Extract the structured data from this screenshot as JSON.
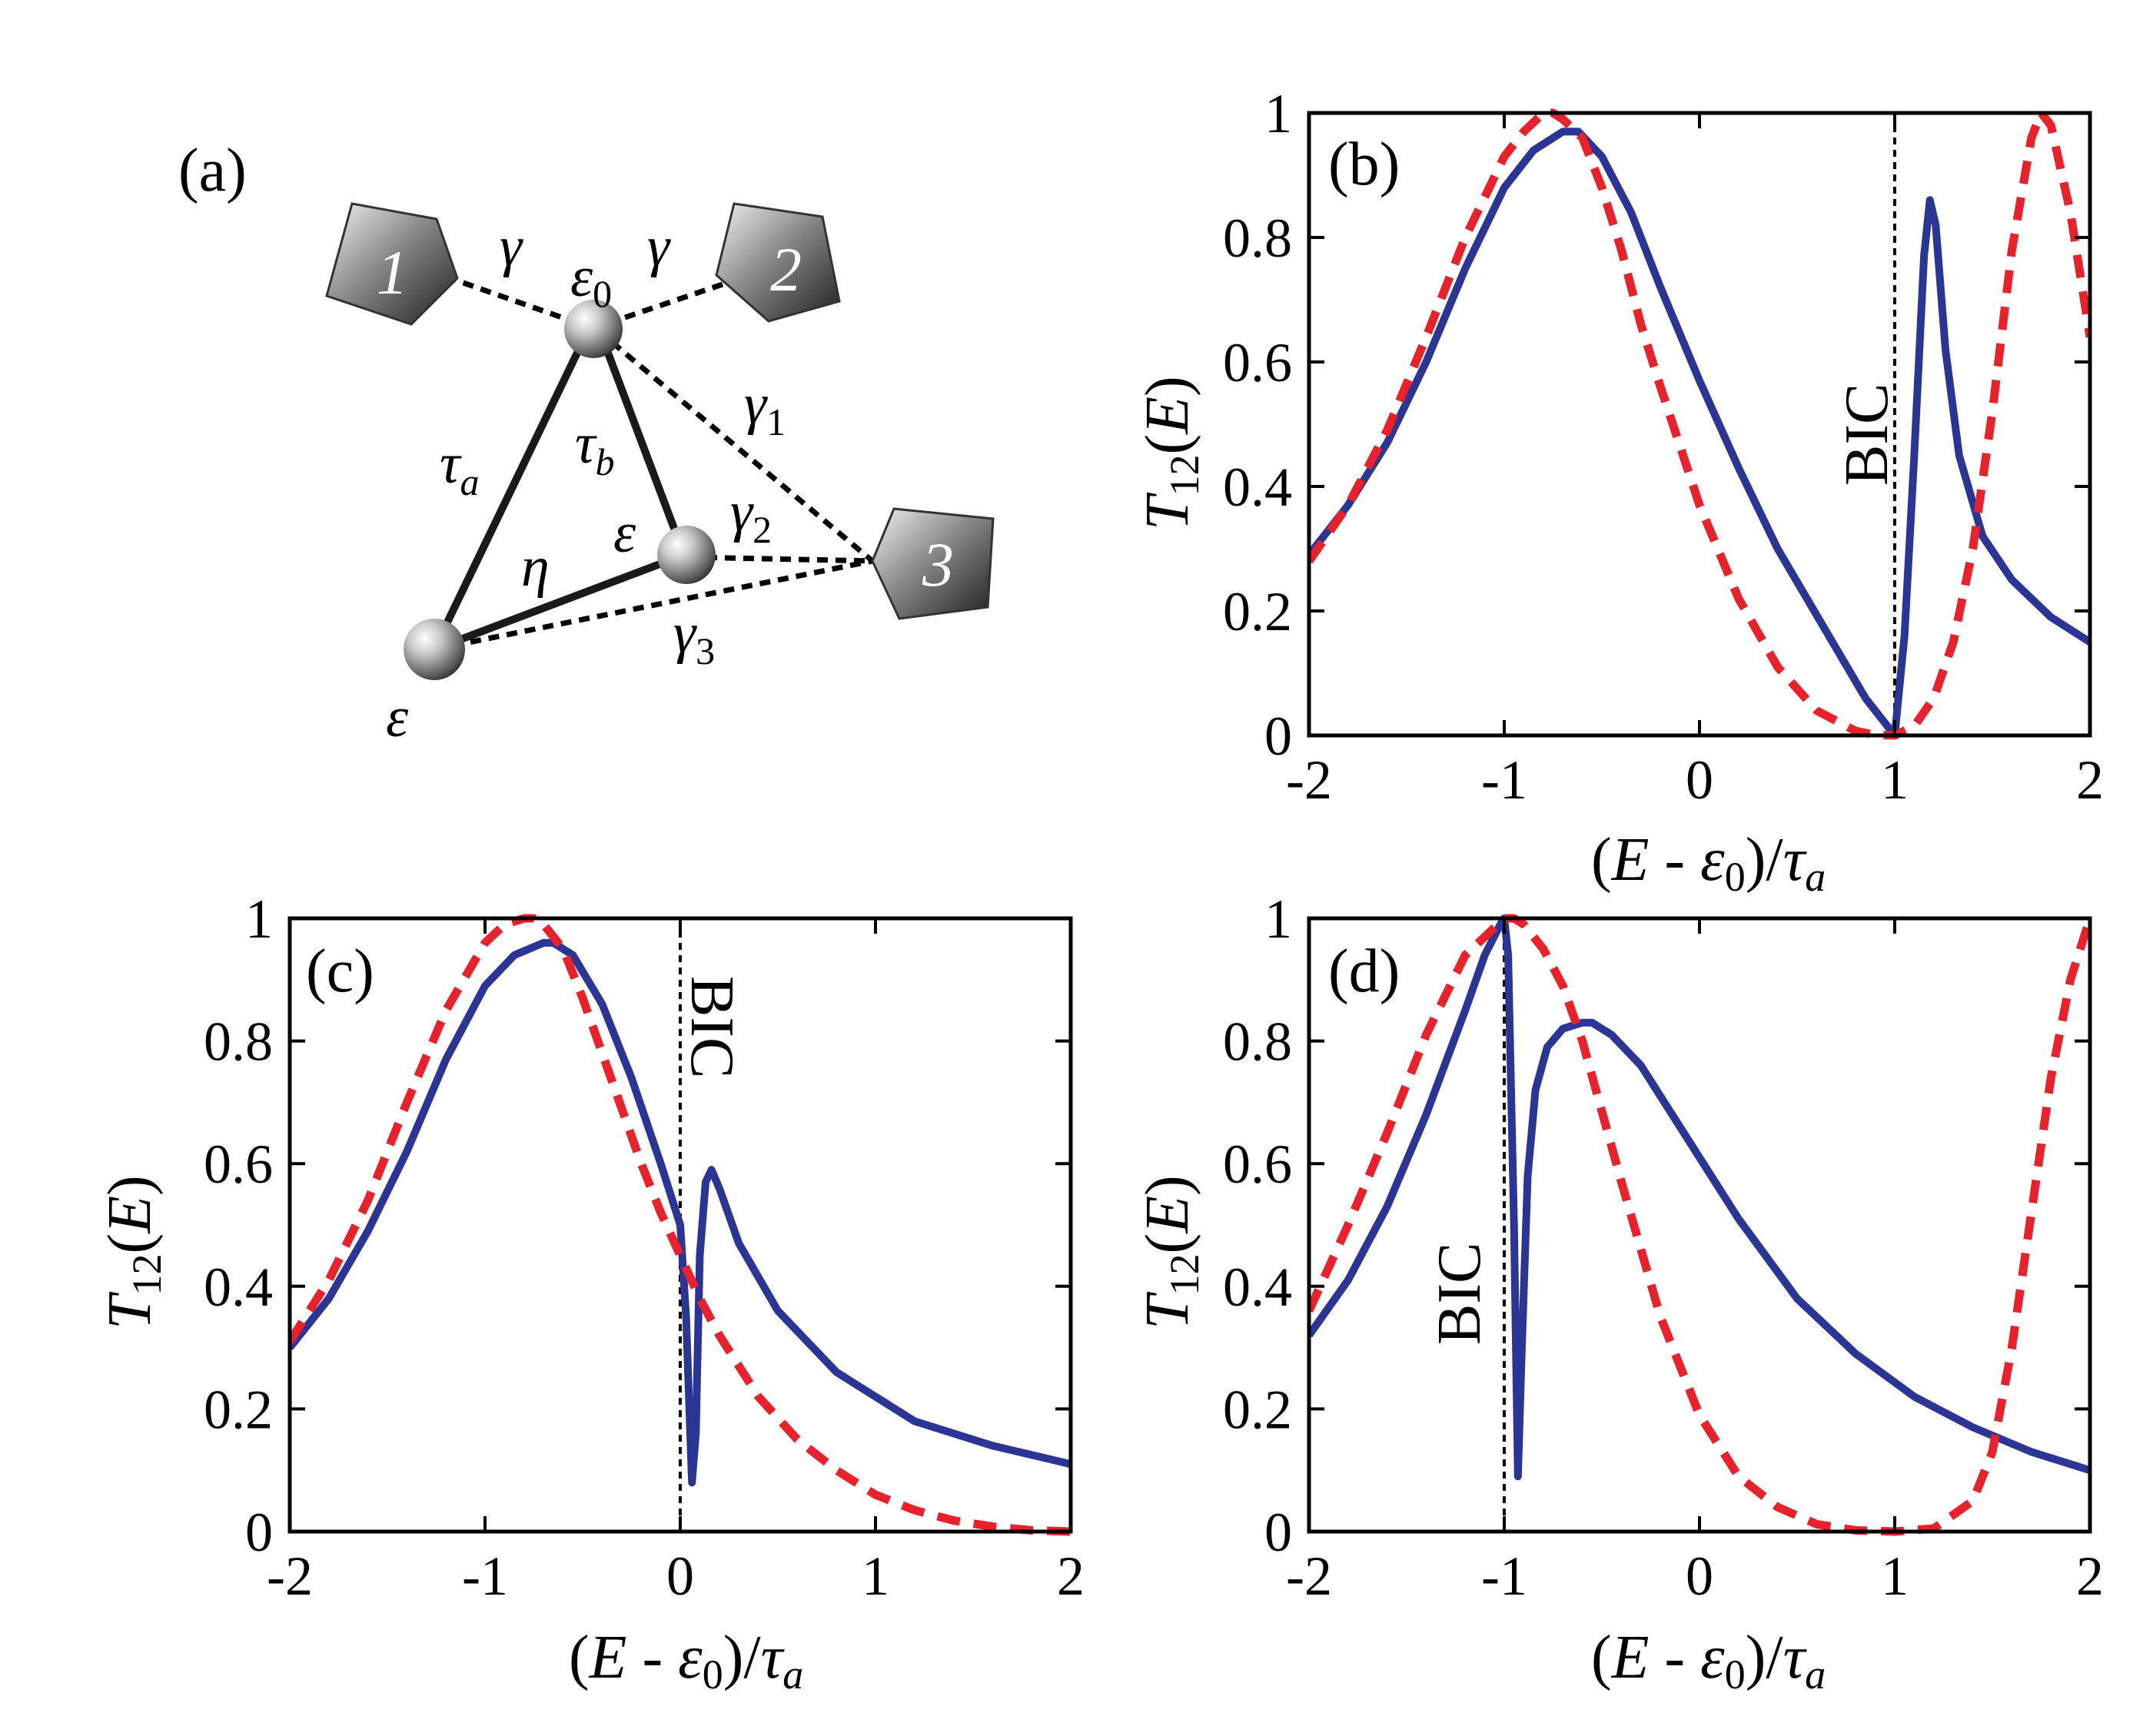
{
  "figure": {
    "panel_a": {
      "label": "(a)",
      "leads": [
        "1",
        "2",
        "3"
      ],
      "sites": {
        "top": "ε",
        "top_sub": "0",
        "right": "ε",
        "bottom": "ε"
      },
      "couplings": {
        "gamma_left": "γ",
        "gamma_right": "γ",
        "gamma1": "γ",
        "gamma1_sub": "1",
        "gamma2": "γ",
        "gamma2_sub": "2",
        "gamma3": "γ",
        "gamma3_sub": "3",
        "tau_a": "τ",
        "tau_a_sub": "a",
        "tau_b": "τ",
        "tau_b_sub": "b",
        "eta": "η"
      }
    },
    "xlabel": {
      "open": "(",
      "E": "E",
      "minus": " - ",
      "eps": "ε",
      "eps_sub": "0",
      "close": ")/",
      "tau": "τ",
      "tau_sub": "a"
    },
    "ylabel": {
      "T": "T",
      "T_sub": "12",
      "open": "(",
      "E": "E",
      "close": ")"
    },
    "colors": {
      "solid": "#2b3596",
      "dashed": "#e8212a",
      "axis": "#000000"
    }
  },
  "chart_data": [
    {
      "panel": "(b)",
      "type": "line",
      "xlim": [
        -2,
        2
      ],
      "ylim": [
        0,
        1
      ],
      "xticks": [
        "-2",
        "-1",
        "0",
        "1",
        "2"
      ],
      "yticks": [
        "0",
        "0.2",
        "0.4",
        "0.6",
        "0.8",
        "1"
      ],
      "bic_label": "BIC",
      "bic_x": 1,
      "series": [
        {
          "name": "solid",
          "x": [
            -2,
            -1.8,
            -1.6,
            -1.4,
            -1.2,
            -1.0,
            -0.85,
            -0.7,
            -0.62,
            -0.5,
            -0.35,
            -0.2,
            0.0,
            0.2,
            0.4,
            0.55,
            0.7,
            0.85,
            1.0,
            1.05,
            1.1,
            1.15,
            1.18,
            1.21,
            1.26,
            1.33,
            1.45,
            1.6,
            1.8,
            2.0
          ],
          "values": [
            0.29,
            0.37,
            0.47,
            0.6,
            0.75,
            0.88,
            0.94,
            0.97,
            0.97,
            0.93,
            0.84,
            0.72,
            0.57,
            0.43,
            0.3,
            0.22,
            0.14,
            0.06,
            0.0,
            0.16,
            0.45,
            0.77,
            0.86,
            0.82,
            0.62,
            0.45,
            0.32,
            0.25,
            0.19,
            0.15
          ]
        },
        {
          "name": "dashed",
          "x": [
            -2,
            -1.8,
            -1.6,
            -1.4,
            -1.2,
            -1.0,
            -0.9,
            -0.8,
            -0.75,
            -0.7,
            -0.6,
            -0.5,
            -0.4,
            -0.3,
            -0.2,
            0.0,
            0.2,
            0.4,
            0.6,
            0.8,
            0.9,
            1.0,
            1.1,
            1.2,
            1.3,
            1.4,
            1.5,
            1.6,
            1.7,
            1.75,
            1.8,
            1.9,
            2.0
          ],
          "values": [
            0.28,
            0.37,
            0.49,
            0.64,
            0.8,
            0.93,
            0.97,
            1.0,
            1.0,
            0.99,
            0.96,
            0.88,
            0.78,
            0.66,
            0.56,
            0.37,
            0.22,
            0.11,
            0.04,
            0.007,
            0.001,
            0.0,
            0.015,
            0.06,
            0.15,
            0.3,
            0.52,
            0.78,
            0.96,
            1.0,
            0.98,
            0.84,
            0.64
          ]
        }
      ]
    },
    {
      "panel": "(c)",
      "type": "line",
      "xlim": [
        -2,
        2
      ],
      "ylim": [
        0,
        1
      ],
      "xticks": [
        "-2",
        "-1",
        "0",
        "1",
        "2"
      ],
      "yticks": [
        "0",
        "0.2",
        "0.4",
        "0.6",
        "0.8",
        "1"
      ],
      "bic_label": "BIC",
      "bic_x": 0,
      "series": [
        {
          "name": "solid",
          "x": [
            -2,
            -1.8,
            -1.6,
            -1.4,
            -1.2,
            -1.0,
            -0.85,
            -0.7,
            -0.65,
            -0.55,
            -0.4,
            -0.25,
            -0.1,
            0.0,
            0.03,
            0.06,
            0.08,
            0.1,
            0.13,
            0.16,
            0.2,
            0.3,
            0.5,
            0.8,
            1.2,
            1.6,
            2.0
          ],
          "values": [
            0.3,
            0.38,
            0.49,
            0.62,
            0.77,
            0.89,
            0.94,
            0.96,
            0.96,
            0.94,
            0.86,
            0.74,
            0.6,
            0.5,
            0.35,
            0.08,
            0.16,
            0.45,
            0.57,
            0.59,
            0.56,
            0.47,
            0.36,
            0.26,
            0.18,
            0.14,
            0.11
          ]
        },
        {
          "name": "dashed",
          "x": [
            -2,
            -1.8,
            -1.6,
            -1.4,
            -1.2,
            -1.0,
            -0.9,
            -0.8,
            -0.75,
            -0.7,
            -0.6,
            -0.5,
            -0.4,
            -0.3,
            -0.2,
            -0.1,
            0.0,
            0.1,
            0.2,
            0.4,
            0.6,
            0.8,
            1.0,
            1.2,
            1.4,
            1.6,
            1.8,
            2.0
          ],
          "values": [
            0.31,
            0.41,
            0.54,
            0.7,
            0.85,
            0.96,
            0.99,
            1.0,
            1.0,
            0.99,
            0.95,
            0.87,
            0.78,
            0.69,
            0.6,
            0.52,
            0.45,
            0.38,
            0.32,
            0.22,
            0.15,
            0.1,
            0.06,
            0.035,
            0.018,
            0.008,
            0.002,
            0.0
          ]
        }
      ]
    },
    {
      "panel": "(d)",
      "type": "line",
      "xlim": [
        -2,
        2
      ],
      "ylim": [
        0,
        1
      ],
      "xticks": [
        "-2",
        "-1",
        "0",
        "1",
        "2"
      ],
      "yticks": [
        "0",
        "0.2",
        "0.4",
        "0.6",
        "0.8",
        "1"
      ],
      "bic_label": "BIC",
      "bic_x": -1,
      "series": [
        {
          "name": "solid",
          "x": [
            -2,
            -1.8,
            -1.6,
            -1.4,
            -1.2,
            -1.1,
            -1.02,
            -1.0,
            -0.98,
            -0.95,
            -0.93,
            -0.91,
            -0.88,
            -0.84,
            -0.78,
            -0.7,
            -0.6,
            -0.55,
            -0.45,
            -0.3,
            -0.1,
            0.2,
            0.5,
            0.8,
            1.1,
            1.4,
            1.7,
            2.0
          ],
          "values": [
            0.32,
            0.41,
            0.53,
            0.68,
            0.85,
            0.94,
            0.99,
            1.0,
            0.94,
            0.5,
            0.09,
            0.3,
            0.58,
            0.72,
            0.79,
            0.82,
            0.83,
            0.83,
            0.81,
            0.76,
            0.66,
            0.51,
            0.38,
            0.29,
            0.22,
            0.17,
            0.13,
            0.1
          ]
        },
        {
          "name": "dashed",
          "x": [
            -2,
            -1.8,
            -1.6,
            -1.4,
            -1.2,
            -1.0,
            -0.95,
            -0.9,
            -0.8,
            -0.7,
            -0.6,
            -0.4,
            -0.2,
            0.0,
            0.2,
            0.4,
            0.6,
            0.8,
            1.0,
            1.2,
            1.4,
            1.5,
            1.6,
            1.7,
            1.8,
            1.9,
            2.0
          ],
          "values": [
            0.36,
            0.5,
            0.65,
            0.81,
            0.94,
            1.0,
            1.0,
            0.99,
            0.95,
            0.89,
            0.8,
            0.57,
            0.35,
            0.19,
            0.09,
            0.04,
            0.012,
            0.002,
            0.0,
            0.005,
            0.05,
            0.13,
            0.3,
            0.52,
            0.74,
            0.9,
            1.0
          ]
        }
      ]
    }
  ]
}
